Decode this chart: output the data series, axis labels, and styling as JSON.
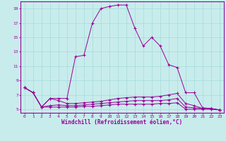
{
  "xlabel": "Windchill (Refroidissement éolien,°C)",
  "bg_color": "#c8ecec",
  "line_color": "#990099",
  "grid_color": "#aadddd",
  "xlim": [
    -0.5,
    23.5
  ],
  "ylim": [
    4.5,
    20.0
  ],
  "xticks": [
    0,
    1,
    2,
    3,
    4,
    5,
    6,
    7,
    8,
    9,
    10,
    11,
    12,
    13,
    14,
    15,
    16,
    17,
    18,
    19,
    20,
    21,
    22,
    23
  ],
  "yticks": [
    5,
    7,
    9,
    11,
    13,
    15,
    17,
    19
  ],
  "line1_x": [
    0,
    1,
    2,
    3,
    4,
    5,
    6,
    7,
    8,
    9,
    10,
    11,
    12,
    13,
    14,
    15,
    16,
    17,
    18,
    19,
    20,
    21,
    22,
    23
  ],
  "line1_y": [
    8.0,
    7.3,
    5.3,
    6.5,
    6.5,
    6.5,
    12.3,
    12.5,
    17.0,
    19.0,
    19.3,
    19.5,
    19.5,
    16.3,
    13.8,
    15.0,
    13.8,
    11.2,
    10.8,
    7.3,
    7.3,
    5.2,
    5.1,
    4.9
  ],
  "line2_x": [
    0,
    1,
    2,
    3,
    4,
    5,
    6,
    7,
    8,
    9,
    10,
    11,
    12,
    13,
    14,
    15,
    16,
    17,
    18,
    19,
    20,
    21,
    22,
    23
  ],
  "line2_y": [
    8.0,
    7.3,
    5.3,
    6.5,
    6.2,
    5.8,
    5.8,
    5.9,
    6.0,
    6.1,
    6.3,
    6.5,
    6.6,
    6.7,
    6.7,
    6.7,
    6.8,
    7.0,
    7.2,
    5.8,
    5.5,
    5.1,
    5.1,
    4.9
  ],
  "line3_x": [
    0,
    1,
    2,
    3,
    4,
    5,
    6,
    7,
    8,
    9,
    10,
    11,
    12,
    13,
    14,
    15,
    16,
    17,
    18,
    19,
    20,
    21,
    22,
    23
  ],
  "line3_y": [
    8.0,
    7.3,
    5.3,
    5.5,
    5.6,
    5.5,
    5.5,
    5.6,
    5.7,
    5.8,
    5.9,
    6.0,
    6.1,
    6.2,
    6.2,
    6.2,
    6.2,
    6.3,
    6.5,
    5.3,
    5.2,
    5.1,
    5.1,
    4.9
  ],
  "line4_x": [
    0,
    1,
    2,
    3,
    4,
    5,
    6,
    7,
    8,
    9,
    10,
    11,
    12,
    13,
    14,
    15,
    16,
    17,
    18,
    19,
    20,
    21,
    22,
    23
  ],
  "line4_y": [
    8.0,
    7.3,
    5.3,
    5.3,
    5.3,
    5.3,
    5.3,
    5.4,
    5.4,
    5.5,
    5.6,
    5.7,
    5.7,
    5.7,
    5.7,
    5.7,
    5.8,
    5.8,
    5.9,
    5.0,
    5.0,
    5.0,
    5.0,
    4.9
  ]
}
